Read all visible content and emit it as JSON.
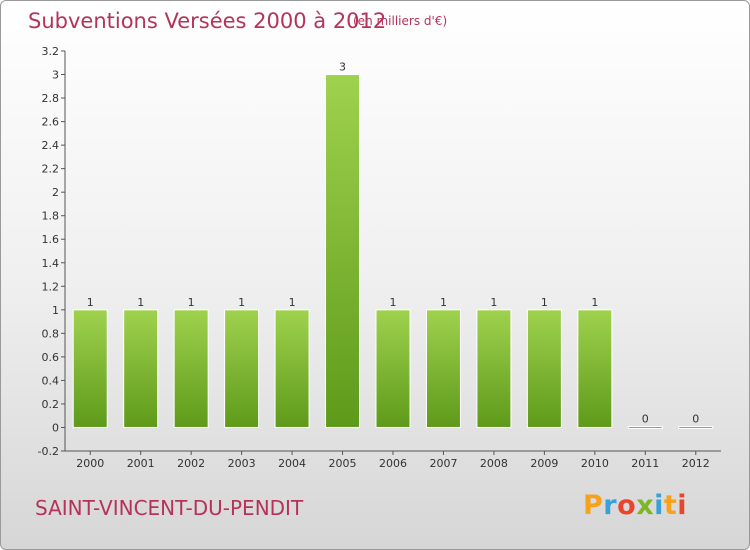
{
  "header": {
    "title": "Subventions Versées 2000 à 2012",
    "subtitle": "(en milliers d'€)"
  },
  "footer": {
    "commune": "SAINT-VINCENT-DU-PENDIT",
    "brand": "Proxiti"
  },
  "colors": {
    "title": "#b5335a",
    "bar_light": "#9fd24e",
    "bar_dark": "#5e9a1a",
    "axis": "#555555",
    "brand_letters": [
      "#f7a21b",
      "#3aa0d8",
      "#e8462c",
      "#7db728",
      "#3aa0d8",
      "#f7a21b",
      "#e8462c"
    ]
  },
  "chart_data": {
    "type": "bar",
    "title": "Subventions Versées 2000 à 2012",
    "subtitle": "(en milliers d'€)",
    "xlabel": "",
    "ylabel": "",
    "categories": [
      "2000",
      "2001",
      "2002",
      "2003",
      "2004",
      "2005",
      "2006",
      "2007",
      "2008",
      "2009",
      "2010",
      "2011",
      "2012"
    ],
    "values": [
      1,
      1,
      1,
      1,
      1,
      3,
      1,
      1,
      1,
      1,
      1,
      0,
      0
    ],
    "data_labels": [
      "1",
      "1",
      "1",
      "1",
      "1",
      "3",
      "1",
      "1",
      "1",
      "1",
      "1",
      "0",
      "0"
    ],
    "ylim": [
      -0.2,
      3.2
    ],
    "yticks": [
      "-0.2",
      "0",
      "0.2",
      "0.4",
      "0.6",
      "0.8",
      "1",
      "1.2",
      "1.4",
      "1.6",
      "1.8",
      "2",
      "2.2",
      "2.4",
      "2.6",
      "2.8",
      "3",
      "3.2"
    ],
    "grid": false,
    "legend": "none"
  }
}
